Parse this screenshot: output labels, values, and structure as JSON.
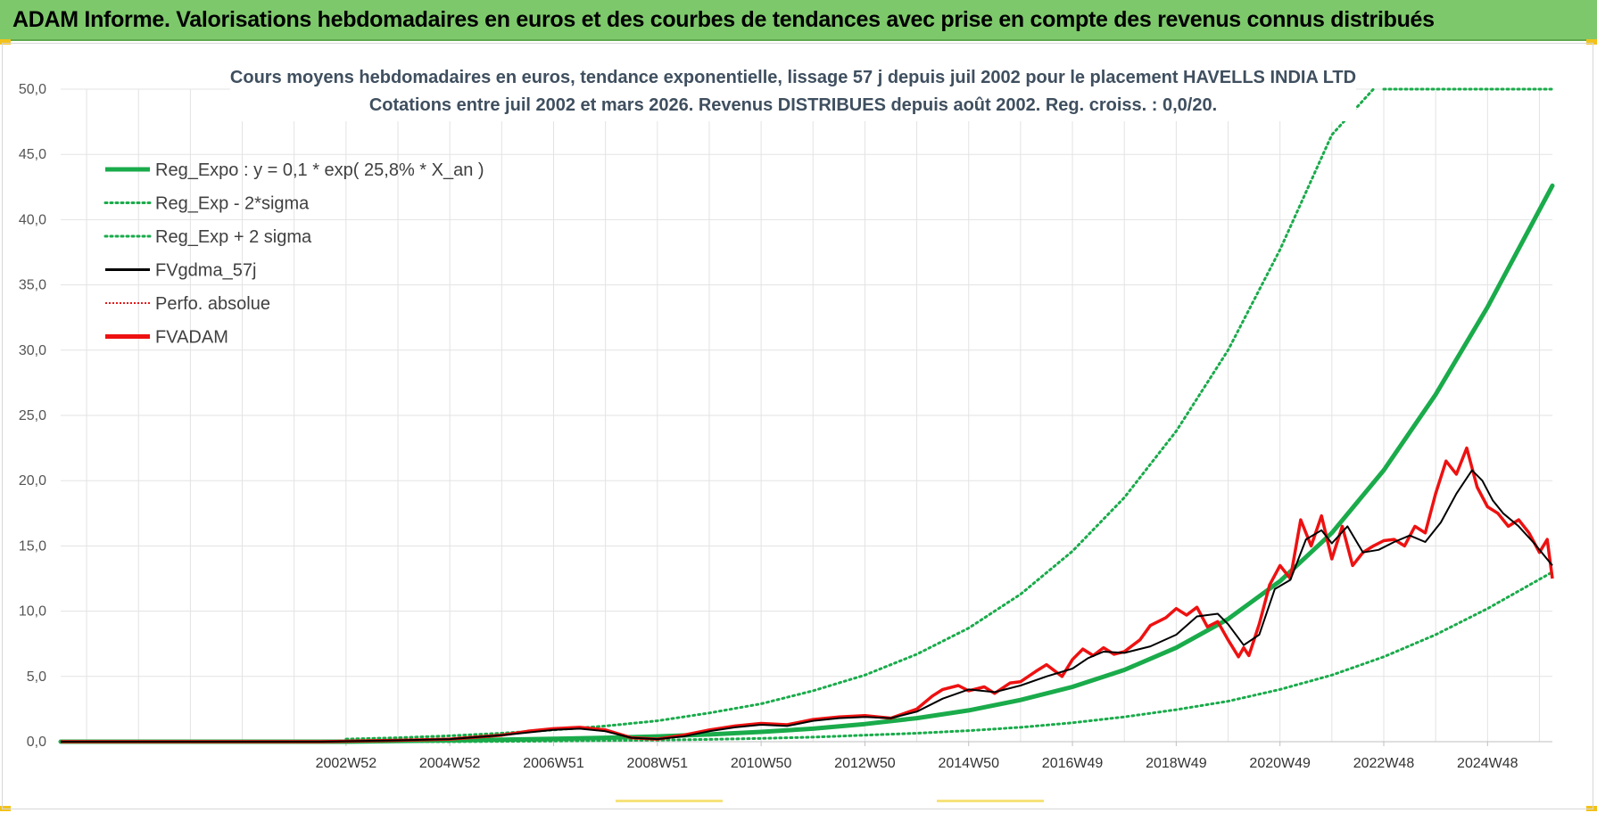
{
  "banner": {
    "title": "ADAM Informe. Valorisations hebdomadaires en euros et des courbes de tendances avec prise en compte des revenus connus distribués"
  },
  "colors": {
    "banner_bg": "#7dc86b",
    "reg_expo": "#1aab4b",
    "sigma": "#1aab4b",
    "fvgdma": "#000000",
    "perfo": "#e41a1a",
    "fvadam": "#ee1111",
    "grid": "#e3e3e3",
    "accent_yellow": "#f3c21a"
  },
  "chart_data": {
    "type": "line",
    "title_line1": "Cours moyens hebdomadaires en euros, tendance exponentielle, lissage 57 j depuis juil 2002 pour le placement HAVELLS INDIA LTD",
    "title_line2": "Cotations entre juil 2002 et mars 2026. Revenus DISTRIBUES depuis août 2002. Reg. croiss. : 0,0/20.",
    "ylim": [
      0,
      50
    ],
    "y_ticks": [
      "0,0",
      "5,0",
      "10,0",
      "15,0",
      "20,0",
      "25,0",
      "30,0",
      "35,0",
      "40,0",
      "45,0",
      "50,0"
    ],
    "x_range_years": [
      1997.5,
      2026.25
    ],
    "x_ticks": [
      {
        "label": "2002W52",
        "year": 2003.0
      },
      {
        "label": "2004W52",
        "year": 2005.0
      },
      {
        "label": "2006W51",
        "year": 2007.0
      },
      {
        "label": "2008W51",
        "year": 2009.0
      },
      {
        "label": "2010W50",
        "year": 2011.0
      },
      {
        "label": "2012W50",
        "year": 2013.0
      },
      {
        "label": "2014W50",
        "year": 2015.0
      },
      {
        "label": "2016W49",
        "year": 2017.0
      },
      {
        "label": "2018W49",
        "year": 2019.0
      },
      {
        "label": "2020W49",
        "year": 2021.0
      },
      {
        "label": "2022W48",
        "year": 2023.0
      },
      {
        "label": "2024W48",
        "year": 2025.0
      }
    ],
    "legend": [
      {
        "key": "reg_expo",
        "label": "Reg_Expo : y = 0,1 * exp( 25,8% *  X_an )"
      },
      {
        "key": "lower",
        "label": "Reg_Exp - 2*sigma"
      },
      {
        "key": "upper",
        "label": "Reg_Exp + 2 sigma"
      },
      {
        "key": "fvgdma",
        "label": "FVgdma_57j"
      },
      {
        "key": "perfo",
        "label": "Perfo. absolue"
      },
      {
        "key": "fvadam",
        "label": "FVADAM"
      }
    ],
    "series": [
      {
        "name": "Reg_Expo",
        "style": "solid-thick",
        "x": [
          1997.5,
          2002.5,
          2003.0,
          2004.0,
          2005.0,
          2006.0,
          2007.0,
          2008.0,
          2009.0,
          2010.0,
          2011.0,
          2012.0,
          2013.0,
          2014.0,
          2015.0,
          2016.0,
          2017.0,
          2018.0,
          2019.0,
          2020.0,
          2021.0,
          2022.0,
          2023.0,
          2024.0,
          2025.0,
          2026.25
        ],
        "y": [
          0.0,
          0.0,
          0.0,
          0.05,
          0.1,
          0.15,
          0.22,
          0.3,
          0.4,
          0.55,
          0.75,
          1.0,
          1.35,
          1.8,
          2.4,
          3.2,
          4.2,
          5.5,
          7.2,
          9.4,
          12.3,
          16.0,
          20.8,
          26.6,
          33.3,
          42.6
        ]
      },
      {
        "name": "Reg_Exp - 2*sigma",
        "style": "dotted",
        "x": [
          2003.0,
          2004.0,
          2005.0,
          2006.0,
          2007.0,
          2008.0,
          2009.0,
          2010.0,
          2011.0,
          2012.0,
          2013.0,
          2014.0,
          2015.0,
          2016.0,
          2017.0,
          2018.0,
          2019.0,
          2020.0,
          2021.0,
          2022.0,
          2023.0,
          2024.0,
          2025.0,
          2026.25
        ],
        "y": [
          0.0,
          0.0,
          0.0,
          0.02,
          0.05,
          0.08,
          0.12,
          0.18,
          0.25,
          0.35,
          0.5,
          0.65,
          0.85,
          1.1,
          1.45,
          1.9,
          2.45,
          3.1,
          4.0,
          5.1,
          6.5,
          8.2,
          10.2,
          13.0
        ]
      },
      {
        "name": "Reg_Exp + 2 sigma",
        "style": "dotted",
        "x": [
          2003.0,
          2004.0,
          2005.0,
          2006.0,
          2007.0,
          2008.0,
          2009.0,
          2010.0,
          2011.0,
          2012.0,
          2013.0,
          2014.0,
          2015.0,
          2016.0,
          2017.0,
          2018.0,
          2019.0,
          2020.0,
          2021.0,
          2022.0,
          2022.8
        ],
        "y": [
          0.2,
          0.3,
          0.45,
          0.65,
          0.9,
          1.2,
          1.6,
          2.2,
          2.9,
          3.9,
          5.1,
          6.7,
          8.7,
          11.3,
          14.6,
          18.7,
          23.8,
          30.0,
          37.7,
          46.5,
          50.0
        ]
      },
      {
        "name": "Reg_Exp + 2 sigma (clipped at top)",
        "style": "dotted",
        "x": [
          2023.0,
          2026.25
        ],
        "y": [
          50.0,
          50.0
        ]
      },
      {
        "name": "FVgdma_57j",
        "style": "solid-thin",
        "x": [
          1997.5,
          2002.5,
          2004.0,
          2005.0,
          2006.0,
          2006.5,
          2007.0,
          2007.5,
          2008.0,
          2008.5,
          2009.0,
          2009.5,
          2010.0,
          2010.5,
          2011.0,
          2011.5,
          2012.0,
          2012.5,
          2013.0,
          2013.5,
          2014.0,
          2014.5,
          2015.0,
          2015.5,
          2016.0,
          2016.5,
          2017.0,
          2017.3,
          2017.6,
          2018.0,
          2018.5,
          2019.0,
          2019.4,
          2019.8,
          2020.0,
          2020.3,
          2020.6,
          2020.9,
          2021.2,
          2021.5,
          2021.8,
          2022.0,
          2022.3,
          2022.6,
          2022.9,
          2023.2,
          2023.5,
          2023.8,
          2024.1,
          2024.4,
          2024.7,
          2024.9,
          2025.1,
          2025.3,
          2025.6,
          2025.9,
          2026.25
        ],
        "y": [
          0.0,
          0.0,
          0.1,
          0.2,
          0.5,
          0.7,
          0.9,
          1.0,
          0.8,
          0.3,
          0.2,
          0.4,
          0.8,
          1.1,
          1.3,
          1.2,
          1.6,
          1.8,
          1.9,
          1.8,
          2.3,
          3.3,
          4.0,
          3.8,
          4.3,
          5.0,
          5.6,
          6.4,
          6.9,
          6.8,
          7.3,
          8.2,
          9.6,
          9.8,
          9.0,
          7.4,
          8.2,
          11.7,
          12.4,
          15.5,
          16.2,
          15.2,
          16.5,
          14.5,
          14.7,
          15.3,
          15.8,
          15.3,
          16.8,
          19.0,
          20.8,
          20.0,
          18.5,
          17.5,
          16.5,
          15.2,
          13.5
        ]
      },
      {
        "name": "FVADAM",
        "style": "solid-red",
        "x": [
          1997.5,
          2002.5,
          2004.0,
          2005.0,
          2006.0,
          2006.5,
          2007.0,
          2007.5,
          2008.0,
          2008.5,
          2009.0,
          2009.5,
          2010.0,
          2010.5,
          2011.0,
          2011.5,
          2012.0,
          2012.5,
          2013.0,
          2013.5,
          2014.0,
          2014.3,
          2014.5,
          2014.8,
          2015.0,
          2015.3,
          2015.5,
          2015.8,
          2016.0,
          2016.3,
          2016.5,
          2016.8,
          2017.0,
          2017.2,
          2017.4,
          2017.6,
          2017.8,
          2018.0,
          2018.3,
          2018.5,
          2018.8,
          2019.0,
          2019.2,
          2019.4,
          2019.6,
          2019.8,
          2020.0,
          2020.2,
          2020.3,
          2020.4,
          2020.6,
          2020.8,
          2021.0,
          2021.2,
          2021.4,
          2021.6,
          2021.8,
          2022.0,
          2022.2,
          2022.4,
          2022.6,
          2022.8,
          2023.0,
          2023.2,
          2023.4,
          2023.6,
          2023.8,
          2024.0,
          2024.2,
          2024.4,
          2024.6,
          2024.8,
          2025.0,
          2025.2,
          2025.4,
          2025.6,
          2025.8,
          2026.0,
          2026.15,
          2026.25
        ],
        "y": [
          0.0,
          0.0,
          0.1,
          0.2,
          0.5,
          0.8,
          1.0,
          1.1,
          0.9,
          0.3,
          0.2,
          0.5,
          0.9,
          1.2,
          1.4,
          1.3,
          1.7,
          1.9,
          2.0,
          1.8,
          2.5,
          3.5,
          4.0,
          4.3,
          3.9,
          4.2,
          3.7,
          4.5,
          4.6,
          5.4,
          5.9,
          5.0,
          6.3,
          7.1,
          6.6,
          7.2,
          6.7,
          6.9,
          7.8,
          8.9,
          9.5,
          10.2,
          9.7,
          10.3,
          8.8,
          9.2,
          7.8,
          6.5,
          7.2,
          6.6,
          9.0,
          12.0,
          13.5,
          12.5,
          17.0,
          15.0,
          17.3,
          14.0,
          16.5,
          13.5,
          14.5,
          15.0,
          15.4,
          15.5,
          15.0,
          16.5,
          16.0,
          19.0,
          21.5,
          20.5,
          22.5,
          19.5,
          18.0,
          17.5,
          16.5,
          17.0,
          16.0,
          14.5,
          15.5,
          12.5
        ]
      }
    ]
  }
}
